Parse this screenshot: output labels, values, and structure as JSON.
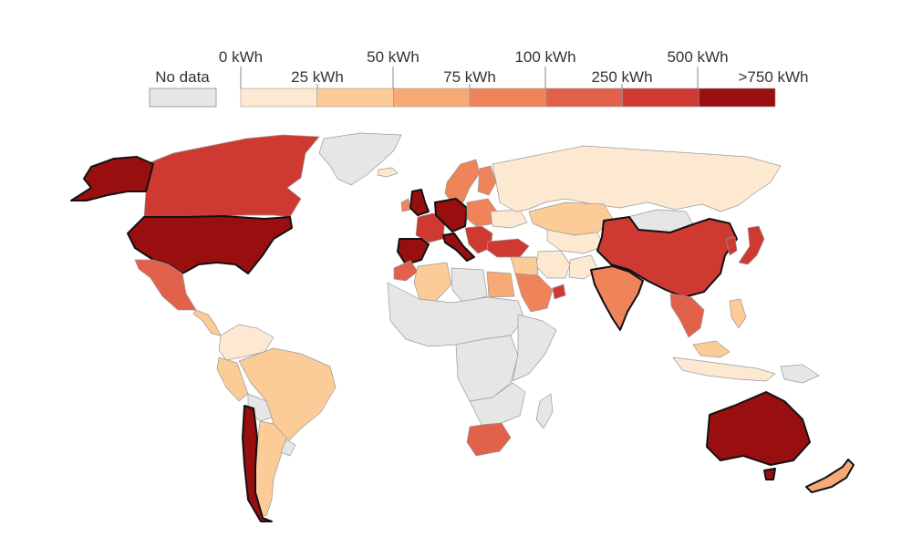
{
  "legend": {
    "no_data_label": "No data",
    "no_data_color": "#e6e6e6",
    "top_labels": [
      "0 kWh",
      "50 kWh",
      "100 kWh",
      "500 kWh"
    ],
    "bottom_labels": [
      "25 kWh",
      "75 kWh",
      "250 kWh",
      ">750 kWh"
    ],
    "bins": [
      {
        "color": "#fde9d2"
      },
      {
        "color": "#fbcb98"
      },
      {
        "color": "#f7aa76"
      },
      {
        "color": "#ef8359"
      },
      {
        "color": "#e2614a"
      },
      {
        "color": "#ce3a32"
      },
      {
        "color": "#990f0f"
      }
    ]
  },
  "map": {
    "regions": [
      {
        "name": "greenland",
        "bin": -1
      },
      {
        "name": "alaska",
        "bin": 6
      },
      {
        "name": "canada",
        "bin": 5
      },
      {
        "name": "united-states",
        "bin": 6
      },
      {
        "name": "mexico",
        "bin": 4
      },
      {
        "name": "central-america",
        "bin": 1
      },
      {
        "name": "colombia-venezuela",
        "bin": 0
      },
      {
        "name": "peru",
        "bin": 1
      },
      {
        "name": "brazil",
        "bin": 1
      },
      {
        "name": "bolivia",
        "bin": -1
      },
      {
        "name": "argentina",
        "bin": 1
      },
      {
        "name": "chile",
        "bin": 6
      },
      {
        "name": "uruguay",
        "bin": -1
      },
      {
        "name": "iceland",
        "bin": 0
      },
      {
        "name": "ireland",
        "bin": 3
      },
      {
        "name": "united-kingdom",
        "bin": 6
      },
      {
        "name": "scandinavia",
        "bin": 3
      },
      {
        "name": "finland",
        "bin": 3
      },
      {
        "name": "france",
        "bin": 5
      },
      {
        "name": "iberia",
        "bin": 6
      },
      {
        "name": "central-europe",
        "bin": 6
      },
      {
        "name": "italy",
        "bin": 6
      },
      {
        "name": "eastern-europe",
        "bin": 3
      },
      {
        "name": "balkans",
        "bin": 5
      },
      {
        "name": "ukraine",
        "bin": 0
      },
      {
        "name": "turkey",
        "bin": 5
      },
      {
        "name": "russia",
        "bin": 0
      },
      {
        "name": "kazakhstan",
        "bin": 1
      },
      {
        "name": "central-asia",
        "bin": 0
      },
      {
        "name": "mongolia",
        "bin": -1
      },
      {
        "name": "china",
        "bin": 5
      },
      {
        "name": "korea",
        "bin": 5
      },
      {
        "name": "japan",
        "bin": 5
      },
      {
        "name": "iran",
        "bin": 0
      },
      {
        "name": "middle-east",
        "bin": 1
      },
      {
        "name": "saudi-arabia",
        "bin": 3
      },
      {
        "name": "uae",
        "bin": 5
      },
      {
        "name": "india",
        "bin": 3
      },
      {
        "name": "pakistan",
        "bin": 0
      },
      {
        "name": "southeast-asia",
        "bin": 4
      },
      {
        "name": "philippines",
        "bin": 1
      },
      {
        "name": "malaysia",
        "bin": 1
      },
      {
        "name": "indonesia",
        "bin": 0
      },
      {
        "name": "new-guinea",
        "bin": -1
      },
      {
        "name": "morocco",
        "bin": 4
      },
      {
        "name": "algeria",
        "bin": 1
      },
      {
        "name": "libya",
        "bin": -1
      },
      {
        "name": "egypt",
        "bin": 2
      },
      {
        "name": "sahel",
        "bin": -1
      },
      {
        "name": "central-africa",
        "bin": -1
      },
      {
        "name": "east-africa",
        "bin": -1
      },
      {
        "name": "southern-africa",
        "bin": -1
      },
      {
        "name": "south-africa",
        "bin": 4
      },
      {
        "name": "madagascar",
        "bin": -1
      },
      {
        "name": "australia",
        "bin": 6
      },
      {
        "name": "tasmania",
        "bin": 6
      },
      {
        "name": "new-zealand",
        "bin": 2
      }
    ]
  }
}
